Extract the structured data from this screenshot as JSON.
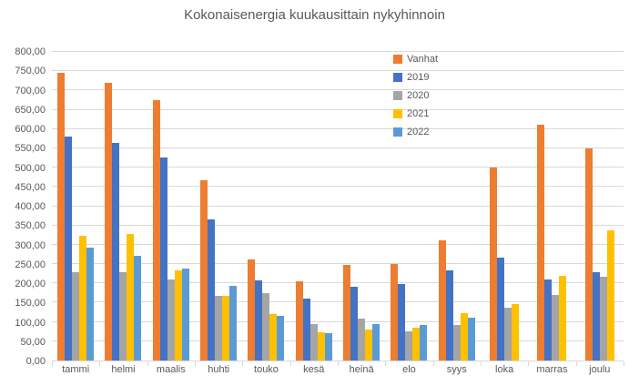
{
  "title": "Kokonaisenergia kuukausittain nykyhinnoin",
  "colors": {
    "background": "#ffffff",
    "gridline": "#d9d9d9",
    "axis_line": "#d9d9d9",
    "text": "#595959"
  },
  "chart_data": {
    "type": "bar",
    "title": "Kokonaisenergia kuukausittain nykyhinnoin",
    "xlabel": "",
    "ylabel": "",
    "ylim": [
      0,
      800
    ],
    "ytick_step": 50,
    "ytick_labels": [
      "0,00",
      "50,00",
      "100,00",
      "150,00",
      "200,00",
      "250,00",
      "300,00",
      "350,00",
      "400,00",
      "450,00",
      "500,00",
      "550,00",
      "600,00",
      "650,00",
      "700,00",
      "750,00",
      "800,00"
    ],
    "grid": true,
    "legend_position": "top-right-vertical",
    "categories": [
      "tammi",
      "helmi",
      "maalis",
      "huhti",
      "touko",
      "kesä",
      "heinä",
      "elo",
      "syys",
      "loka",
      "marras",
      "joulu"
    ],
    "series": [
      {
        "name": "Vanhat",
        "color": "#ED7D31",
        "values": [
          745,
          720,
          675,
          468,
          262,
          205,
          248,
          250,
          312,
          500,
          611,
          549
        ]
      },
      {
        "name": "2019",
        "color": "#4472C4",
        "values": [
          580,
          565,
          527,
          366,
          207,
          161,
          192,
          198,
          233,
          267,
          210,
          229
        ]
      },
      {
        "name": "2020",
        "color": "#A5A5A5",
        "values": [
          228,
          228,
          209,
          168,
          175,
          94,
          108,
          76,
          92,
          138,
          171,
          216
        ]
      },
      {
        "name": "2021",
        "color": "#FFC000",
        "values": [
          324,
          329,
          234,
          168,
          120,
          74,
          80,
          85,
          122,
          146,
          220,
          337
        ]
      },
      {
        "name": "2022",
        "color": "#5B9BD5",
        "values": [
          293,
          272,
          239,
          194,
          116,
          72,
          94,
          91,
          110,
          null,
          null,
          null
        ]
      }
    ]
  }
}
